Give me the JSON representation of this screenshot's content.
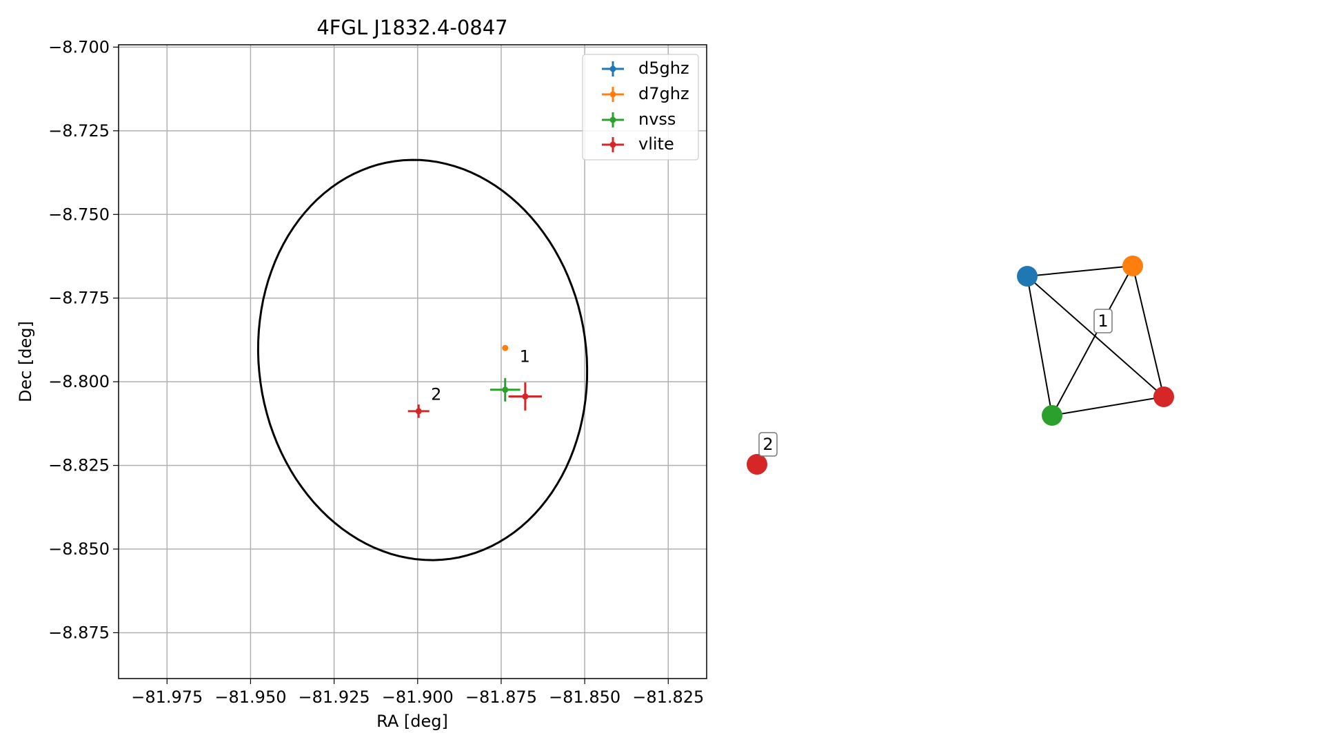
{
  "chart_data": [
    {
      "type": "scatter",
      "title": "4FGL J1832.4-0847",
      "xlabel": "RA [deg]",
      "ylabel": "Dec [deg]",
      "xlim": [
        -81.9895,
        -81.8135
      ],
      "ylim": [
        -8.8887,
        -8.6993
      ],
      "x_ticks": [
        -81.975,
        -81.95,
        -81.925,
        -81.9,
        -81.875,
        -81.85,
        -81.825
      ],
      "x_tick_labels": [
        "−81.975",
        "−81.950",
        "−81.925",
        "−81.900",
        "−81.875",
        "−81.850",
        "−81.825"
      ],
      "y_ticks": [
        -8.7,
        -8.725,
        -8.75,
        -8.775,
        -8.8,
        -8.825,
        -8.85,
        -8.875
      ],
      "y_tick_labels": [
        "−8.700",
        "−8.725",
        "−8.750",
        "−8.775",
        "−8.800",
        "−8.825",
        "−8.850",
        "−8.875"
      ],
      "grid": true,
      "legend_position": "top-right",
      "ellipse": {
        "center": [
          -81.8985,
          -8.7935
        ],
        "semi_axis_ra": 0.049,
        "semi_axis_dec": 0.06,
        "angle_deg": 8,
        "color": "#000000"
      },
      "series": [
        {
          "name": "d5ghz",
          "color": "#1f77b4",
          "points": []
        },
        {
          "name": "d7ghz",
          "color": "#ff7f0e",
          "points": [
            {
              "x": -81.8738,
              "y": -8.7899,
              "xerr": 0.0004,
              "yerr": 0.0004
            }
          ]
        },
        {
          "name": "nvss",
          "color": "#2ca02c",
          "points": [
            {
              "x": -81.8738,
              "y": -8.8024,
              "xerr": 0.0045,
              "yerr": 0.0035
            }
          ]
        },
        {
          "name": "vlite",
          "color": "#d62728",
          "points": [
            {
              "x": -81.8678,
              "y": -8.8044,
              "xerr": 0.005,
              "yerr": 0.0042
            },
            {
              "x": -81.8997,
              "y": -8.8088,
              "xerr": 0.0032,
              "yerr": 0.002
            }
          ]
        }
      ],
      "annotations": [
        {
          "text": "1",
          "x": -81.8695,
          "y": -8.7941
        },
        {
          "text": "2",
          "x": -81.896,
          "y": -8.8054
        }
      ]
    },
    {
      "type": "network",
      "nodes": [
        {
          "id": "d5ghz",
          "color": "#1f77b4"
        },
        {
          "id": "d7ghz",
          "color": "#ff7f0e"
        },
        {
          "id": "nvss",
          "color": "#2ca02c"
        },
        {
          "id": "vlite_1",
          "color": "#d62728"
        },
        {
          "id": "vlite_2",
          "color": "#d62728"
        }
      ],
      "edges": [
        [
          "d5ghz",
          "d7ghz"
        ],
        [
          "d5ghz",
          "nvss"
        ],
        [
          "d5ghz",
          "vlite_1"
        ],
        [
          "d7ghz",
          "nvss"
        ],
        [
          "d7ghz",
          "vlite_1"
        ],
        [
          "nvss",
          "vlite_1"
        ]
      ],
      "labels": [
        {
          "text": "1",
          "group": [
            "d5ghz",
            "d7ghz",
            "nvss",
            "vlite_1"
          ]
        },
        {
          "text": "2",
          "group": [
            "vlite_2"
          ]
        }
      ]
    }
  ]
}
